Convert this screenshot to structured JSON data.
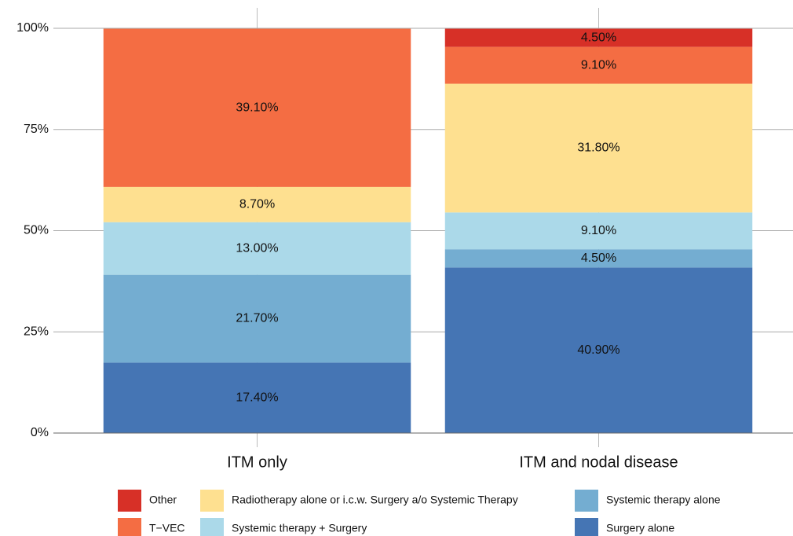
{
  "chart_data": {
    "type": "stacked_bar",
    "categories": [
      "ITM only",
      "ITM and nodal disease"
    ],
    "series": [
      {
        "name": "Surgery alone",
        "color": "#4575b4",
        "values": [
          17.4,
          40.9
        ],
        "value_labels": [
          "17.40%",
          "40.90%"
        ]
      },
      {
        "name": "Systemic therapy alone",
        "color": "#74add1",
        "values": [
          21.7,
          4.5
        ],
        "value_labels": [
          "21.70%",
          "4.50%"
        ]
      },
      {
        "name": "Systemic therapy + Surgery",
        "color": "#abd9e9",
        "values": [
          13.0,
          9.1
        ],
        "value_labels": [
          "13.00%",
          "9.10%"
        ]
      },
      {
        "name": "Radiotherapy alone or i.c.w. Surgery a/o Systemic Therapy",
        "color": "#fee090",
        "values": [
          8.7,
          31.8
        ],
        "value_labels": [
          "8.70%",
          "31.80%"
        ]
      },
      {
        "name": "T−VEC",
        "color": "#f46d43",
        "values": [
          39.1,
          9.1
        ],
        "value_labels": [
          "39.10%",
          "9.10%"
        ]
      },
      {
        "name": "Other",
        "color": "#d73027",
        "values": [
          null,
          4.5
        ],
        "value_labels": [
          null,
          "4.50%"
        ]
      }
    ],
    "ylim": [
      0,
      100
    ],
    "yticks": [
      {
        "value": 0,
        "label": "0%"
      },
      {
        "value": 25,
        "label": "25%"
      },
      {
        "value": 50,
        "label": "50%"
      },
      {
        "value": 75,
        "label": "75%"
      },
      {
        "value": 100,
        "label": "100%"
      }
    ],
    "grid": true
  }
}
